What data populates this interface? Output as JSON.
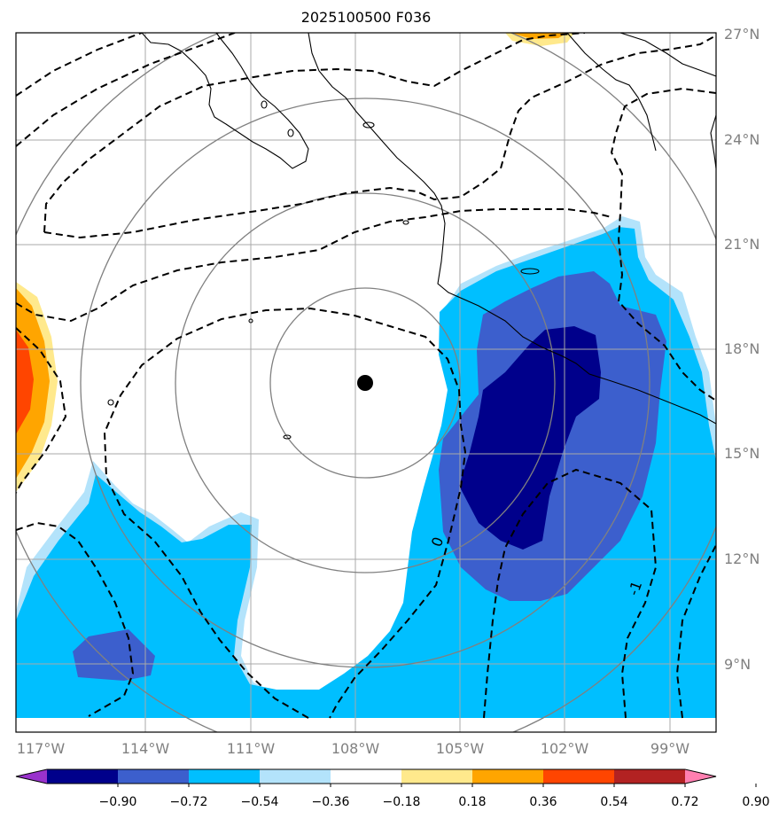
{
  "title": "2025100500 F036",
  "map": {
    "lat_labels": [
      "27°N",
      "24°N",
      "21°N",
      "18°N",
      "15°N",
      "12°N",
      "9°N"
    ],
    "lon_labels": [
      "117°W",
      "114°W",
      "111°W",
      "108°W",
      "105°W",
      "102°W",
      "99°W"
    ],
    "contour_labels": [
      "0",
      "-1"
    ],
    "storm_center": {
      "lon": -108.2,
      "lat": 17.0
    }
  },
  "colorbar": {
    "ticks": [
      "−0.90",
      "−0.72",
      "−0.54",
      "−0.36",
      "−0.18",
      "0.18",
      "0.36",
      "0.54",
      "0.72",
      "0.90"
    ],
    "colors": [
      "#9932cc",
      "#00008b",
      "#3c5fcd",
      "#00bfff",
      "#b3e3fb",
      "#ffffff",
      "#ffe98c",
      "#ffa500",
      "#ff4500",
      "#b22222",
      "#ff7fb0"
    ]
  },
  "colors": {
    "gridline": "#a8a8a8",
    "range_ring": "#808080",
    "contour": "#000000",
    "coastline": "#000000"
  }
}
